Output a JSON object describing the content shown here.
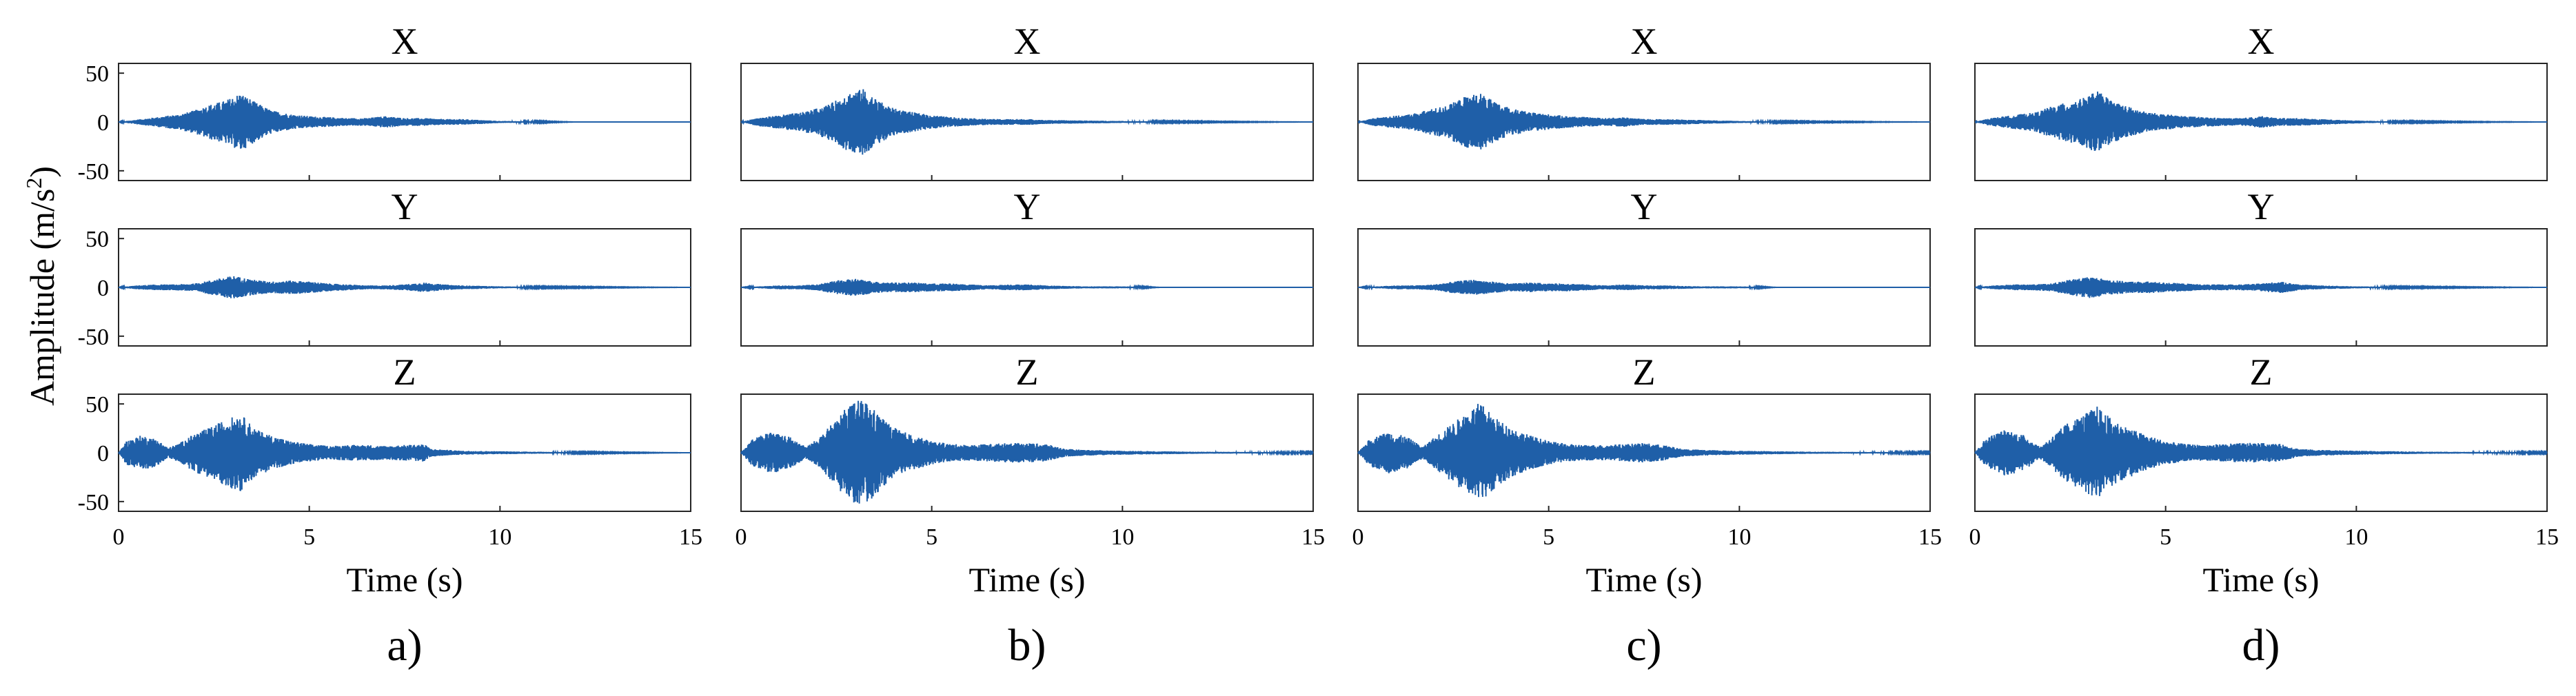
{
  "figure": {
    "ylabel": "Amplitude (m/s",
    "ylabel_sup": "2",
    "ylabel_close": ")",
    "series_color": "#1f5fa8"
  },
  "chart_data": [
    {
      "type": "line",
      "panel": "a)",
      "xlabel": "Time (s)",
      "xlim": [
        0,
        15
      ],
      "ylim": [
        -60,
        60
      ],
      "xticks": [
        "0",
        "5",
        "10",
        "15"
      ],
      "yticks": [
        "50",
        "0",
        "-50"
      ],
      "subplots": [
        {
          "title": "X",
          "series": [
            {
              "envelope": {
                "t": [
                  0,
                  0.4,
                  0.8,
                  1.2,
                  1.6,
                  2.0,
                  2.4,
                  2.8,
                  3.2,
                  3.6,
                  4.0,
                  4.5,
                  5.0,
                  5.5,
                  6.0,
                  6.5,
                  7.0,
                  7.5,
                  8.0,
                  8.5,
                  9.0,
                  9.5,
                  10.0,
                  11.0,
                  12.0,
                  15.0
                ],
                "a": [
                  0,
                  2,
                  4,
                  6,
                  8,
                  12,
                  18,
                  22,
                  30,
                  20,
                  12,
                  8,
                  6,
                  5,
                  4,
                  4,
                  6,
                  4,
                  4,
                  3,
                  3,
                  2,
                  1,
                  0.5,
                  0,
                  0
                ]
              }
            }
          ]
        },
        {
          "title": "Y",
          "series": [
            {
              "envelope": {
                "t": [
                  0,
                  0.5,
                  1.0,
                  1.5,
                  2.0,
                  2.5,
                  3.0,
                  3.5,
                  4.0,
                  4.5,
                  5.0,
                  5.5,
                  6.0,
                  6.5,
                  7.0,
                  7.5,
                  8.0,
                  8.5,
                  9.0,
                  10.0,
                  11.0,
                  15.0
                ],
                "a": [
                  0,
                  2,
                  3,
                  3,
                  4,
                  8,
                  12,
                  8,
                  6,
                  7,
                  6,
                  4,
                  3,
                  2,
                  2,
                  3,
                  5,
                  3,
                  2,
                  1,
                  0.5,
                  0
                ]
              }
            }
          ]
        },
        {
          "title": "Z",
          "series": [
            {
              "envelope": {
                "t": [
                  0,
                  0.2,
                  0.6,
                  1.0,
                  1.3,
                  1.6,
                  2.0,
                  2.4,
                  2.8,
                  3.2,
                  3.6,
                  4.0,
                  4.5,
                  5.0,
                  5.5,
                  6.0,
                  6.5,
                  7.0,
                  7.5,
                  8.0,
                  8.2,
                  9.0,
                  10.0,
                  11.0,
                  12.0,
                  15.0
                ],
                "a": [
                  0,
                  12,
                  18,
                  14,
                  5,
                  10,
                  20,
                  26,
                  34,
                  40,
                  24,
                  18,
                  12,
                  9,
                  7,
                  8,
                  8,
                  7,
                  8,
                  9,
                  4,
                  2,
                  1.5,
                  1,
                  0.5,
                  0
                ]
              }
            }
          ]
        }
      ]
    },
    {
      "type": "line",
      "panel": "b)",
      "xlabel": "Time (s)",
      "xlim": [
        0,
        15
      ],
      "ylim": [
        -60,
        60
      ],
      "xticks": [
        "0",
        "5",
        "10",
        "15"
      ],
      "yticks": [],
      "subplots": [
        {
          "title": "X",
          "series": [
            {
              "envelope": {
                "t": [
                  0,
                  0.4,
                  0.8,
                  1.2,
                  1.6,
                  2.0,
                  2.4,
                  2.8,
                  3.2,
                  3.6,
                  4.0,
                  4.5,
                  5.0,
                  5.5,
                  6.0,
                  6.5,
                  7.0,
                  7.5,
                  8.0,
                  9.0,
                  10.0,
                  11.0,
                  15.0
                ],
                "a": [
                  0,
                  4,
                  6,
                  8,
                  10,
                  14,
                  20,
                  30,
                  34,
                  22,
                  14,
                  10,
                  7,
                  5,
                  4,
                  3,
                  3,
                  3,
                  2,
                  1.5,
                  1,
                  0.5,
                  0
                ]
              }
            }
          ]
        },
        {
          "title": "Y",
          "series": [
            {
              "envelope": {
                "t": [
                  0,
                  0.5,
                  1.0,
                  1.5,
                  2.0,
                  2.5,
                  3.0,
                  3.5,
                  4.0,
                  4.5,
                  5.0,
                  5.5,
                  6.0,
                  6.5,
                  7.0,
                  7.5,
                  8.0,
                  9.0,
                  10.0,
                  11.0,
                  15.0
                ],
                "a": [
                  0,
                  1,
                  2,
                  2,
                  3,
                  7,
                  9,
                  6,
                  5,
                  5,
                  4,
                  4,
                  3,
                  2,
                  3,
                  3,
                  2,
                  1,
                  1,
                  0,
                  0
                ]
              }
            }
          ]
        },
        {
          "title": "Z",
          "series": [
            {
              "envelope": {
                "t": [
                  0,
                  0.3,
                  0.8,
                  1.3,
                  1.7,
                  2.0,
                  2.4,
                  2.8,
                  3.2,
                  3.6,
                  4.0,
                  4.5,
                  5.0,
                  5.5,
                  6.0,
                  6.5,
                  7.0,
                  7.5,
                  8.0,
                  8.5,
                  9.0,
                  10.0,
                  11.0,
                  12.0,
                  15.0
                ],
                "a": [
                  0,
                  14,
                  22,
                  16,
                  6,
                  14,
                  30,
                  48,
                  56,
                  40,
                  26,
                  18,
                  12,
                  9,
                  8,
                  9,
                  10,
                  10,
                  9,
                  4,
                  3,
                  2,
                  1.5,
                  1,
                  0.5
                ]
              }
            }
          ]
        }
      ]
    },
    {
      "type": "line",
      "panel": "c)",
      "xlabel": "Time (s)",
      "xlim": [
        0,
        15
      ],
      "ylim": [
        -60,
        60
      ],
      "xticks": [
        "0",
        "5",
        "10",
        "15"
      ],
      "yticks": [],
      "subplots": [
        {
          "title": "X",
          "series": [
            {
              "envelope": {
                "t": [
                  0,
                  0.4,
                  0.8,
                  1.2,
                  1.6,
                  2.0,
                  2.4,
                  2.8,
                  3.2,
                  3.6,
                  4.0,
                  4.5,
                  5.0,
                  5.5,
                  6.0,
                  6.5,
                  7.0,
                  7.5,
                  8.0,
                  9.0,
                  10.0,
                  11.0,
                  15.0
                ],
                "a": [
                  0,
                  4,
                  6,
                  7,
                  10,
                  14,
                  18,
                  26,
                  30,
                  20,
                  14,
                  10,
                  8,
                  6,
                  5,
                  4,
                  5,
                  3,
                  3,
                  2,
                  1,
                  0.5,
                  0
                ]
              }
            }
          ]
        },
        {
          "title": "Y",
          "series": [
            {
              "envelope": {
                "t": [
                  0,
                  0.5,
                  1.0,
                  1.5,
                  2.0,
                  2.5,
                  3.0,
                  3.5,
                  4.0,
                  4.5,
                  5.0,
                  5.5,
                  6.0,
                  6.5,
                  7.0,
                  7.5,
                  8.0,
                  9.0,
                  10.0,
                  11.0,
                  15.0
                ],
                "a": [
                  0,
                  1,
                  2,
                  2,
                  3,
                  6,
                  8,
                  6,
                  4,
                  5,
                  4,
                  4,
                  3,
                  2,
                  3,
                  2,
                  2,
                  1,
                  1,
                  0,
                  0
                ]
              }
            }
          ]
        },
        {
          "title": "Z",
          "series": [
            {
              "envelope": {
                "t": [
                  0,
                  0.3,
                  0.8,
                  1.3,
                  1.7,
                  2.0,
                  2.4,
                  2.8,
                  3.2,
                  3.6,
                  4.0,
                  4.5,
                  5.0,
                  5.5,
                  6.0,
                  6.5,
                  7.0,
                  7.5,
                  8.0,
                  8.5,
                  9.0,
                  10.0,
                  11.0,
                  12.0,
                  15.0
                ],
                "a": [
                  0,
                  14,
                  22,
                  16,
                  6,
                  16,
                  28,
                  40,
                  52,
                  36,
                  26,
                  18,
                  12,
                  9,
                  8,
                  8,
                  9,
                  10,
                  8,
                  4,
                  3,
                  2,
                  1.5,
                  1,
                  0.5
                ]
              }
            }
          ]
        }
      ]
    },
    {
      "type": "line",
      "panel": "d)",
      "xlabel": "Time (s)",
      "xlim": [
        0,
        15
      ],
      "ylim": [
        -60,
        60
      ],
      "xticks": [
        "0",
        "5",
        "10",
        "15"
      ],
      "yticks": [],
      "subplots": [
        {
          "title": "X",
          "series": [
            {
              "envelope": {
                "t": [
                  0,
                  0.4,
                  0.8,
                  1.2,
                  1.6,
                  2.0,
                  2.4,
                  2.8,
                  3.2,
                  3.6,
                  4.0,
                  4.5,
                  5.0,
                  5.5,
                  6.0,
                  6.5,
                  7.0,
                  7.5,
                  8.0,
                  8.5,
                  9.0,
                  10.0,
                  11.0,
                  15.0
                ],
                "a": [
                  0,
                  4,
                  6,
                  8,
                  10,
                  16,
                  20,
                  24,
                  32,
                  22,
                  16,
                  10,
                  8,
                  6,
                  5,
                  4,
                  4,
                  6,
                  4,
                  4,
                  3,
                  1.5,
                  0.5,
                  0
                ]
              }
            }
          ]
        },
        {
          "title": "Y",
          "series": [
            {
              "envelope": {
                "t": [
                  0,
                  0.5,
                  1.0,
                  1.5,
                  2.0,
                  2.5,
                  3.0,
                  3.5,
                  4.0,
                  4.5,
                  5.0,
                  5.5,
                  6.0,
                  6.5,
                  7.0,
                  7.5,
                  8.0,
                  8.5,
                  9.0,
                  10.0,
                  11.0,
                  15.0
                ],
                "a": [
                  0,
                  2,
                  3,
                  3,
                  4,
                  8,
                  11,
                  8,
                  6,
                  6,
                  5,
                  4,
                  3,
                  3,
                  3,
                  4,
                  6,
                  3,
                  2,
                  1,
                  0.5,
                  0
                ]
              }
            }
          ]
        },
        {
          "title": "Z",
          "series": [
            {
              "envelope": {
                "t": [
                  0,
                  0.3,
                  0.8,
                  1.3,
                  1.7,
                  2.0,
                  2.4,
                  2.8,
                  3.2,
                  3.6,
                  4.0,
                  4.5,
                  5.0,
                  5.5,
                  6.0,
                  6.5,
                  7.0,
                  7.5,
                  8.0,
                  8.5,
                  9.0,
                  10.0,
                  11.0,
                  12.0,
                  15.0
                ],
                "a": [
                  0,
                  16,
                  24,
                  18,
                  6,
                  16,
                  30,
                  38,
                  48,
                  34,
                  26,
                  18,
                  12,
                  9,
                  8,
                  9,
                  10,
                  10,
                  9,
                  4,
                  3,
                  2,
                  1.5,
                  1,
                  0.5
                ]
              }
            }
          ]
        }
      ]
    }
  ]
}
